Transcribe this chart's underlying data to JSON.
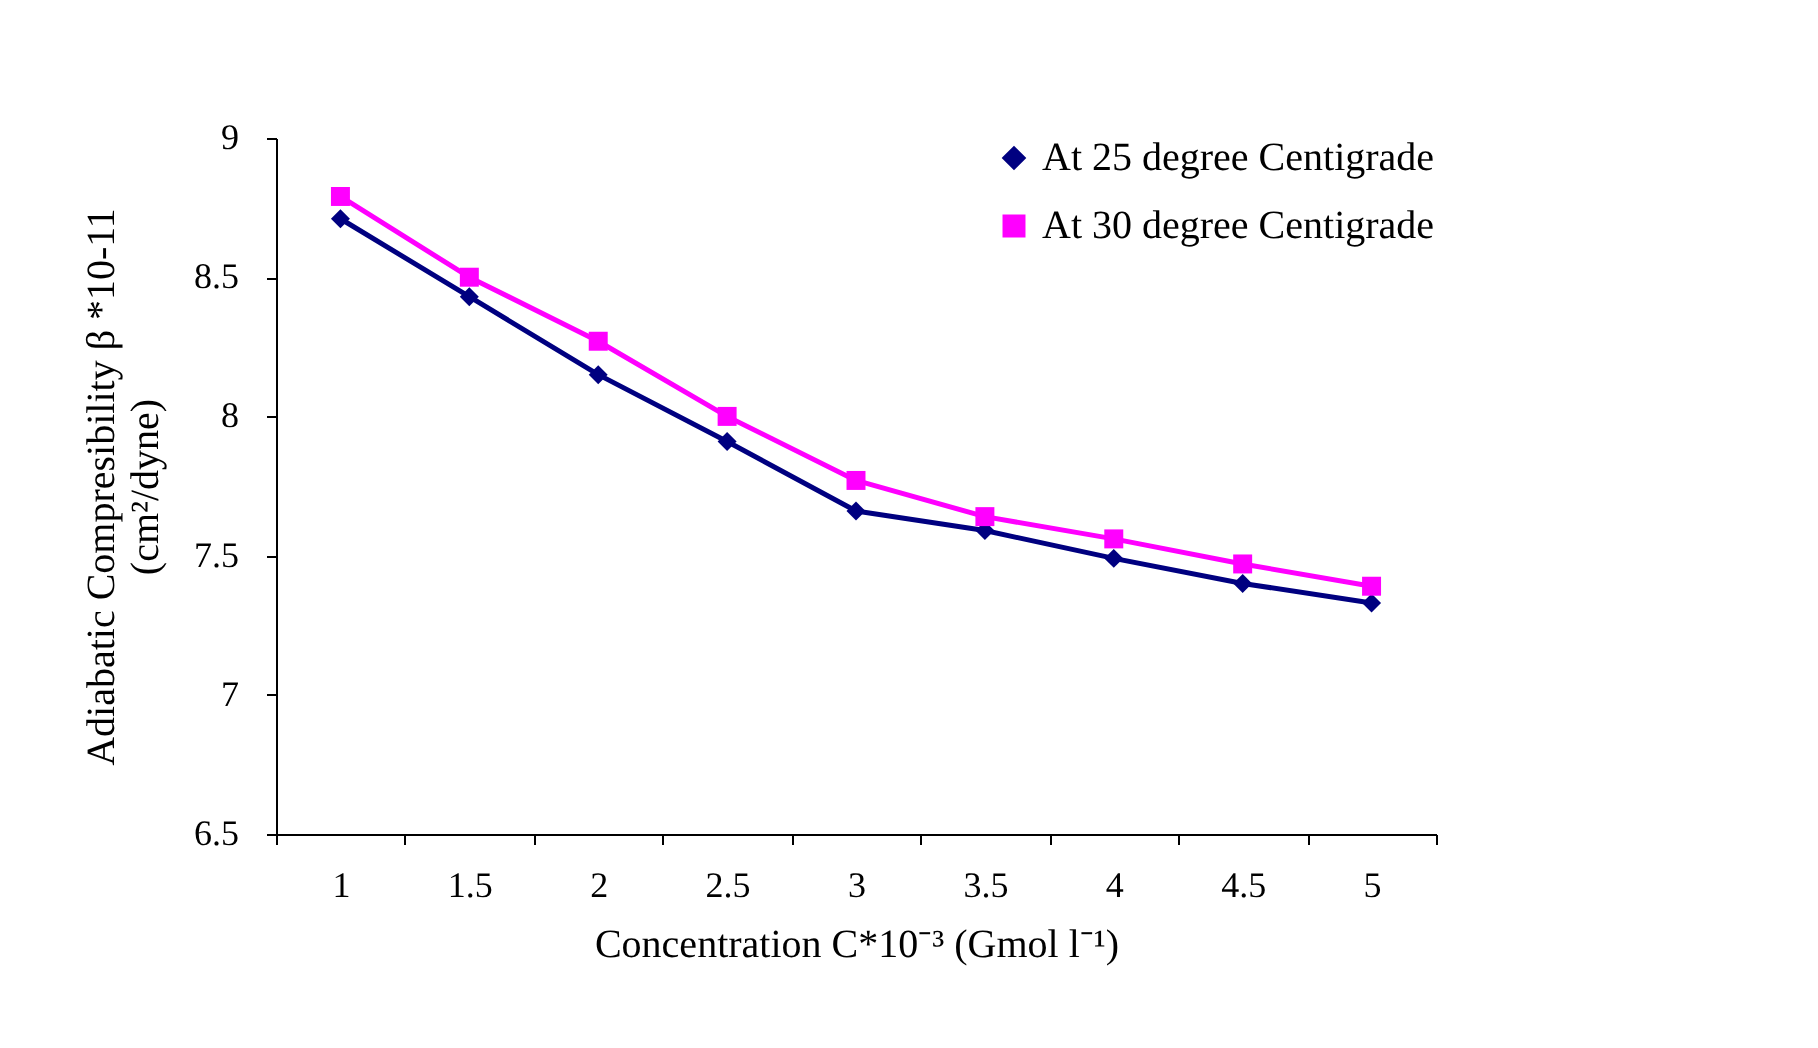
{
  "chart_data": {
    "type": "line",
    "categories": [
      "1",
      "1.5",
      "2",
      "2.5",
      "3",
      "3.5",
      "4",
      "4.5",
      "5"
    ],
    "series": [
      {
        "name": "At 25 degree Centigrade",
        "color": "#000080",
        "marker": "diamond",
        "values": [
          8.71,
          8.43,
          8.15,
          7.91,
          7.66,
          7.59,
          7.49,
          7.4,
          7.33
        ]
      },
      {
        "name": "At 30 degree Centigrade",
        "color": "#ff00ff",
        "marker": "square",
        "values": [
          8.79,
          8.5,
          8.27,
          8.0,
          7.77,
          7.64,
          7.56,
          7.47,
          7.39
        ]
      }
    ],
    "xlabel": "Concentration C*10⁻³ (Gmol l⁻¹)",
    "ylabel": [
      "Adiabatic Compresibility β *10-11",
      "(cm²/dyne)"
    ],
    "ylim": [
      6.5,
      9
    ],
    "yticks": [
      6.5,
      7,
      7.5,
      8,
      8.5,
      9
    ],
    "grid": false,
    "legend": "top right",
    "line_style": "solid"
  }
}
